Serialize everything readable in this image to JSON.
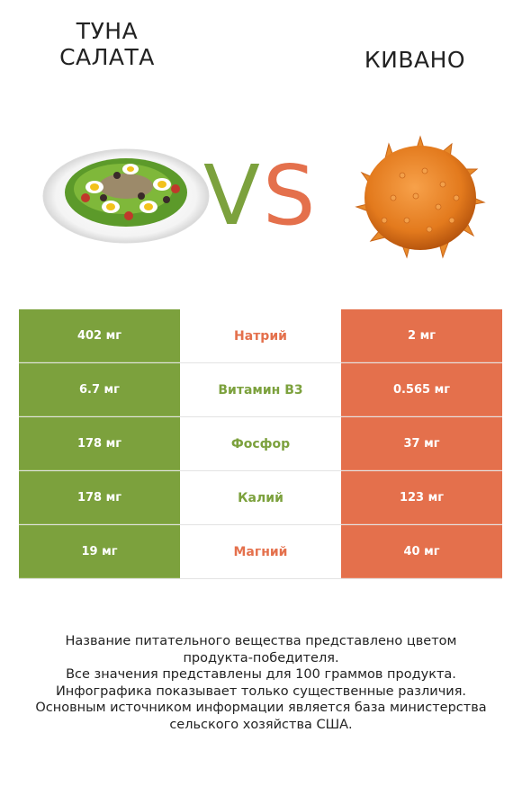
{
  "header": {
    "left_title_line1": "ТУНА",
    "left_title_line2": "САЛАТА",
    "right_title": "КИВАНО",
    "vs_v": "V",
    "vs_s": "S"
  },
  "colors": {
    "left_accent": "#7ca13d",
    "right_accent": "#e4704c"
  },
  "images": {
    "left": "tuna-salad-plate",
    "right": "kiwano-fruit"
  },
  "rows": [
    {
      "left": "402 мг",
      "nutrient": "Натрий",
      "winner": "right",
      "right": "2 мг"
    },
    {
      "left": "6.7 мг",
      "nutrient": "Витамин B3",
      "winner": "left",
      "right": "0.565 мг"
    },
    {
      "left": "178 мг",
      "nutrient": "Фосфор",
      "winner": "left",
      "right": "37 мг"
    },
    {
      "left": "178 мг",
      "nutrient": "Калий",
      "winner": "left",
      "right": "123 мг"
    },
    {
      "left": "19 мг",
      "nutrient": "Магний",
      "winner": "right",
      "right": "40 мг"
    }
  ],
  "footer": {
    "line1": "Название питательного вещества представлено цветом",
    "line2": "продукта-победителя.",
    "line3": "Все значения представлены для 100 граммов продукта.",
    "line4": "Инфографика показывает только существенные различия.",
    "line5": "Основным источником информации является база министерства",
    "line6": "сельского хозяйства США."
  }
}
